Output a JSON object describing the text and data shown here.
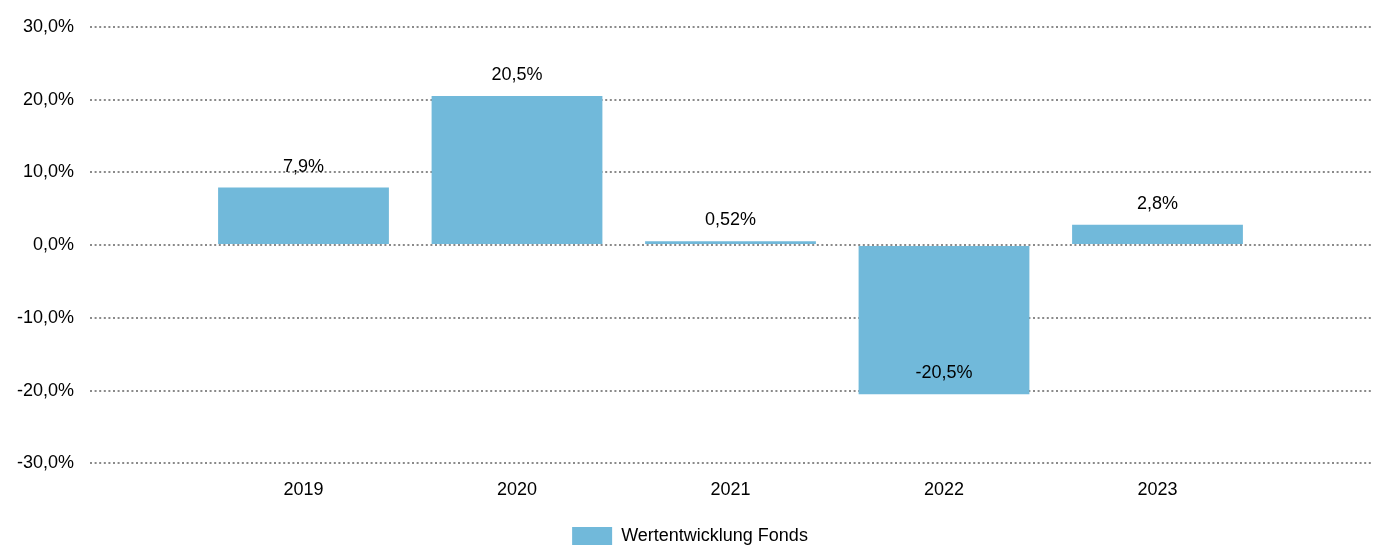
{
  "chart_data": {
    "type": "bar",
    "categories": [
      null,
      "2019",
      "2020",
      "2021",
      "2022",
      "2023",
      null
    ],
    "series": [
      {
        "name": "Wertentwicklung Fonds",
        "color": "#71b9da",
        "values": [
          null,
          7.9,
          20.5,
          0.52,
          -20.5,
          2.8,
          null
        ],
        "value_labels": [
          null,
          "7,9%",
          "20,5%",
          "0,52%",
          "-20,5%",
          "2,8%",
          null
        ]
      }
    ],
    "ylim": [
      -30,
      30
    ],
    "yticks": [
      {
        "value": -30,
        "label": "-30,0%"
      },
      {
        "value": -20,
        "label": "-20,0%"
      },
      {
        "value": -10,
        "label": "-10,0%"
      },
      {
        "value": 0,
        "label": "0,0%"
      },
      {
        "value": 10,
        "label": "10,0%"
      },
      {
        "value": 20,
        "label": "20,0%"
      },
      {
        "value": 30,
        "label": "30,0%"
      }
    ],
    "grid": "y",
    "legend": "bottom"
  }
}
